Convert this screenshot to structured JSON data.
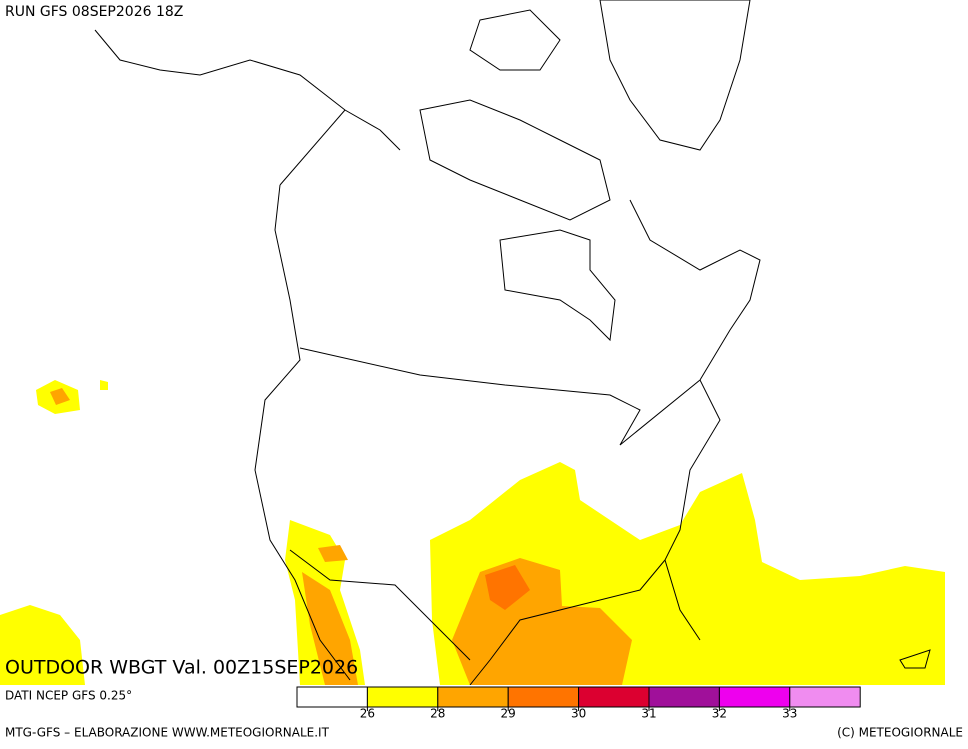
{
  "header": {
    "run": "RUN GFS 08SEP2026 18Z"
  },
  "title": "OUTDOOR WBGT Val. 00Z15SEP2026",
  "source": "DATI NCEP GFS 0.25°",
  "colorbar": {
    "colors": [
      "#ffffff",
      "#ffff00",
      "#ffa500",
      "#ff7400",
      "#dc0030",
      "#a0109a",
      "#ee00ee",
      "#f08cf0"
    ],
    "ticks": [
      26,
      28,
      29,
      30,
      31,
      32,
      33
    ]
  },
  "footer": {
    "left": "MTG-GFS – ELABORAZIONE WWW.METEOGIORNALE.IT",
    "right": "(C) METEOGIORNALE"
  }
}
